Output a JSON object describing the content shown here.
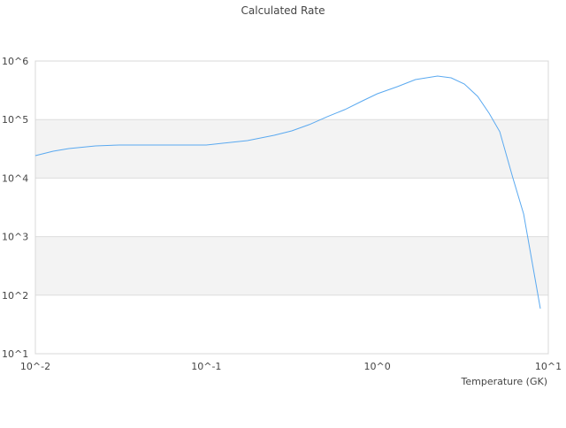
{
  "chart_data": {
    "type": "line",
    "title": "Calculated Rate",
    "xlabel": "Temperature (GK)",
    "ylabel": "",
    "xscale": "log",
    "yscale": "log",
    "xlim": [
      0.01,
      10
    ],
    "ylim": [
      10,
      1000000
    ],
    "x_ticks": [
      "10^-2",
      "10^-1",
      "10^0",
      "10^1"
    ],
    "y_ticks": [
      "10^1",
      "10^2",
      "10^3",
      "10^4",
      "10^5",
      "10^6"
    ],
    "grid": true,
    "alternating_bands": true,
    "legend": "none",
    "colors": {
      "line": "#5aa9f0",
      "band": "#f3f3f3",
      "grid": "#dddddd"
    },
    "series": [
      {
        "x": [
          0.01,
          0.0127,
          0.0157,
          0.0225,
          0.031,
          0.05,
          0.1,
          0.174,
          0.249,
          0.316,
          0.4,
          0.51,
          0.646,
          0.82,
          1.0,
          1.31,
          1.67,
          2.25,
          2.7,
          3.23,
          3.86,
          4.51,
          5.2,
          6.2,
          7.17,
          8.98
        ],
        "y": [
          24200,
          28800,
          31900,
          35500,
          36700,
          36700,
          36700,
          43700,
          53800,
          64000,
          82000,
          112000,
          148000,
          209000,
          276000,
          365000,
          482000,
          553000,
          516000,
          405000,
          249000,
          128000,
          62000,
          10100,
          2440,
          59
        ]
      }
    ]
  }
}
